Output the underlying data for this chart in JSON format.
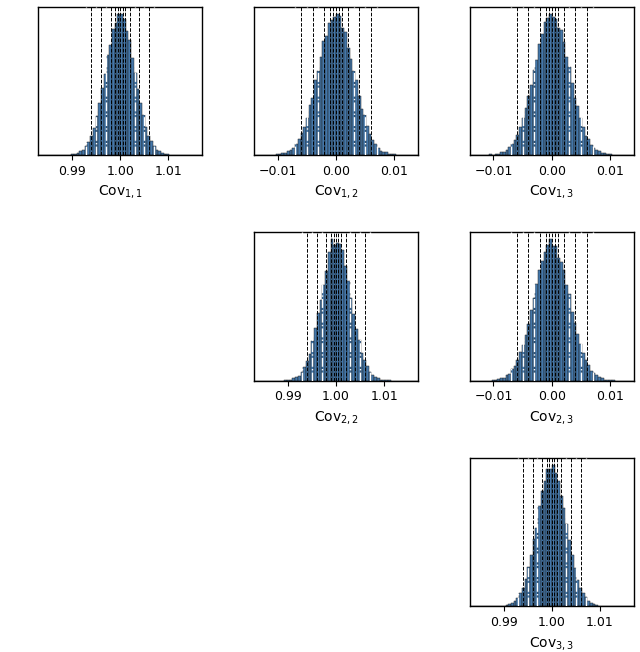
{
  "panels": [
    {
      "row": 0,
      "col": 0,
      "label": "Cov$_{1,1}$",
      "mean": 1.0,
      "std": 0.003,
      "xlim": [
        0.983,
        1.017
      ],
      "xticks": [
        0.99,
        1.0,
        1.01
      ],
      "xticklabels": [
        "0.99",
        "1.00",
        "1.01"
      ]
    },
    {
      "row": 0,
      "col": 1,
      "label": "Cov$_{1,2}$",
      "mean": 0.0,
      "std": 0.003,
      "xlim": [
        -0.014,
        0.014
      ],
      "xticks": [
        -0.01,
        0.0,
        0.01
      ],
      "xticklabels": [
        "−0.01",
        "0.00",
        "0.01"
      ]
    },
    {
      "row": 0,
      "col": 2,
      "label": "Cov$_{1,3}$",
      "mean": 0.0,
      "std": 0.003,
      "xlim": [
        -0.014,
        0.014
      ],
      "xticks": [
        -0.01,
        0.0,
        0.01
      ],
      "xticklabels": [
        "−0.01",
        "0.00",
        "0.01"
      ]
    },
    {
      "row": 1,
      "col": 1,
      "label": "Cov$_{2,2}$",
      "mean": 1.0,
      "std": 0.003,
      "xlim": [
        0.983,
        1.017
      ],
      "xticks": [
        0.99,
        1.0,
        1.01
      ],
      "xticklabels": [
        "0.99",
        "1.00",
        "1.01"
      ]
    },
    {
      "row": 1,
      "col": 2,
      "label": "Cov$_{2,3}$",
      "mean": 0.0,
      "std": 0.003,
      "xlim": [
        -0.014,
        0.014
      ],
      "xticks": [
        -0.01,
        0.0,
        0.01
      ],
      "xticklabels": [
        "−0.01",
        "0.00",
        "0.01"
      ]
    },
    {
      "row": 2,
      "col": 2,
      "label": "Cov$_{3,3}$",
      "mean": 1.0,
      "std": 0.003,
      "xlim": [
        0.983,
        1.017
      ],
      "xticks": [
        0.99,
        1.0,
        1.01
      ],
      "xticklabels": [
        "0.99",
        "1.00",
        "1.01"
      ]
    }
  ],
  "bar_color": "#4477AA",
  "bar_edgecolor": "#222222",
  "n_samples": 50000,
  "n_bins": 60,
  "n_grid": 3,
  "figsize": [
    6.4,
    6.52
  ],
  "dpi": 100,
  "vlines_black_offsets": [
    -0.006,
    -0.004,
    -0.002,
    -0.001,
    0.0,
    0.001,
    0.002,
    0.004,
    0.006
  ],
  "vlines_white_offsets": [
    -0.007,
    -0.005,
    -0.003,
    0.003,
    0.005,
    0.007
  ],
  "vline_black_lw": 0.7,
  "vline_white_lw": 1.0
}
